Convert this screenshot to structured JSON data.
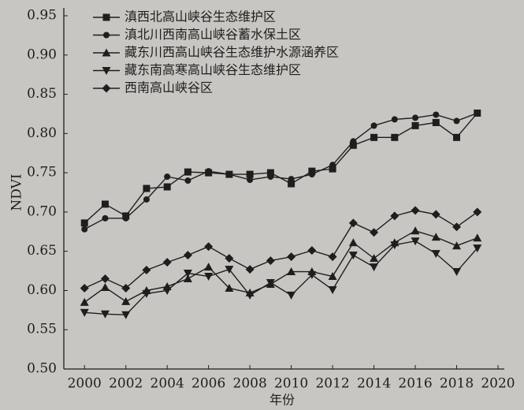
{
  "chart_data": {
    "type": "line",
    "x": [
      2000,
      2001,
      2002,
      2003,
      2004,
      2005,
      2006,
      2007,
      2008,
      2009,
      2010,
      2011,
      2012,
      2013,
      2014,
      2015,
      2016,
      2017,
      2018,
      2019
    ],
    "series": [
      {
        "name": "滇西北高山峡谷生态维护区",
        "color": "#1e1e1e",
        "marker": "square",
        "values": [
          0.686,
          0.71,
          0.695,
          0.73,
          0.732,
          0.751,
          0.75,
          0.748,
          0.748,
          0.75,
          0.736,
          0.752,
          0.755,
          0.785,
          0.795,
          0.795,
          0.81,
          0.814,
          0.795,
          0.826
        ]
      },
      {
        "name": "滇北川西南高山峡谷蓄水保土区",
        "color": "#1e1e1e",
        "marker": "circle",
        "values": [
          0.678,
          0.692,
          0.692,
          0.716,
          0.745,
          0.74,
          0.752,
          0.748,
          0.741,
          0.745,
          0.742,
          0.748,
          0.76,
          0.79,
          0.81,
          0.818,
          0.82,
          0.824,
          0.816,
          0.826
        ]
      },
      {
        "name": "藏东川西高山峡谷生态维护水源涵养区",
        "color": "#1e1e1e",
        "marker": "triangle-up",
        "values": [
          0.585,
          0.604,
          0.586,
          0.6,
          0.605,
          0.615,
          0.63,
          0.603,
          0.597,
          0.608,
          0.624,
          0.624,
          0.618,
          0.661,
          0.641,
          0.661,
          0.676,
          0.668,
          0.657,
          0.667
        ]
      },
      {
        "name": "藏东南高寒高山峡谷生态维护区",
        "color": "#1e1e1e",
        "marker": "triangle-down",
        "values": [
          0.572,
          0.57,
          0.569,
          0.596,
          0.6,
          0.622,
          0.618,
          0.627,
          0.594,
          0.61,
          0.594,
          0.62,
          0.601,
          0.645,
          0.63,
          0.658,
          0.663,
          0.647,
          0.624,
          0.654
        ]
      },
      {
        "name": "西南高山峡谷区",
        "color": "#1e1e1e",
        "marker": "diamond",
        "values": [
          0.603,
          0.615,
          0.603,
          0.626,
          0.636,
          0.645,
          0.656,
          0.641,
          0.627,
          0.638,
          0.643,
          0.651,
          0.643,
          0.686,
          0.674,
          0.695,
          0.702,
          0.697,
          0.681,
          0.7
        ]
      }
    ],
    "x_label": "年份",
    "y_label": "NDVI",
    "xlim": [
      1999,
      2020
    ],
    "xticks": [
      2000,
      2002,
      2004,
      2006,
      2008,
      2010,
      2012,
      2014,
      2016,
      2018,
      2020
    ],
    "ylim": [
      0.5,
      0.95
    ],
    "yticks": [
      {
        "value": 0.5,
        "label": "0.50"
      },
      0.55,
      {
        "value": 0.6,
        "label": "0.60"
      },
      0.65,
      {
        "value": 0.7,
        "label": "0.70"
      },
      0.75,
      {
        "value": 0.8,
        "label": "0.80"
      },
      0.85,
      {
        "value": 0.9,
        "label": "0.90"
      },
      0.95
    ],
    "legend": "upper left",
    "grid": false
  }
}
